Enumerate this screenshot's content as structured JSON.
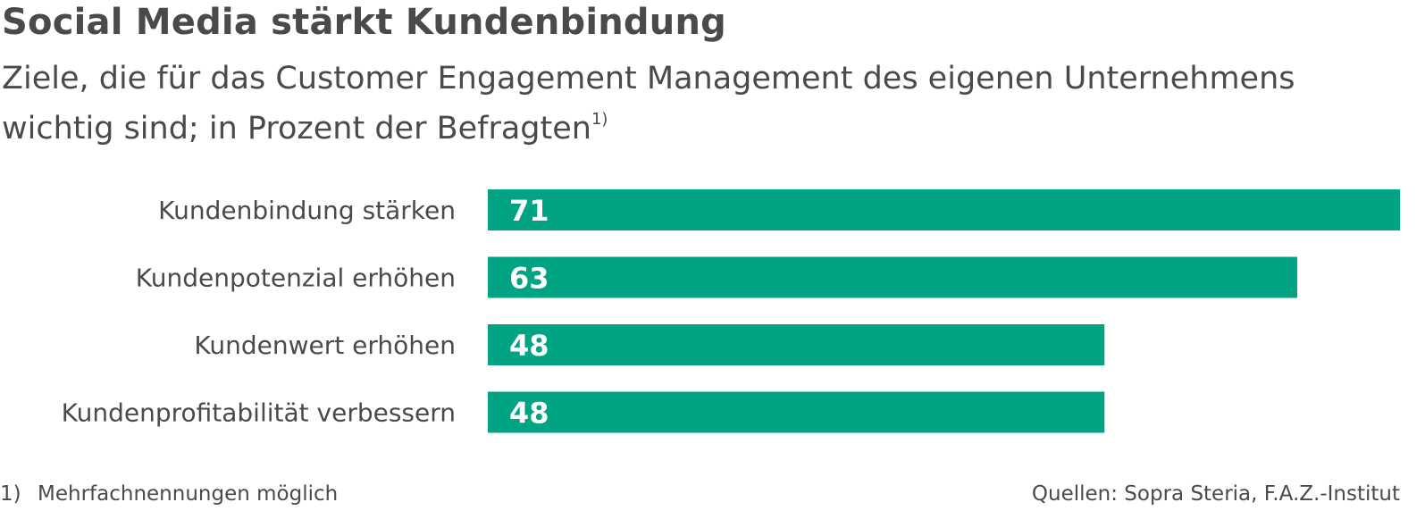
{
  "title": "Social Media stärkt Kundenbindung",
  "subtitle": "Ziele, die für das Customer Engagement Management des eigenen Unternehmens wichtig sind; in Prozent der Befragten",
  "subtitle_footnote_marker": "1)",
  "footnote": {
    "marker": "1)",
    "text": "Mehrfachnennungen möglich"
  },
  "source": "Quellen: Sopra Steria, F.A.Z.-Institut",
  "colors": {
    "bar": "#00a382",
    "text": "#4a4a4a",
    "value_text": "#ffffff"
  },
  "chart_data": {
    "type": "bar",
    "orientation": "horizontal",
    "categories": [
      "Kundenbindung stärken",
      "Kundenpotenzial erhöhen",
      "Kundenwert erhöhen",
      "Kundenprofitabilität verbessern"
    ],
    "values": [
      71,
      63,
      48,
      48
    ],
    "xlim": [
      0,
      71
    ],
    "grid": false,
    "legend": "none"
  }
}
